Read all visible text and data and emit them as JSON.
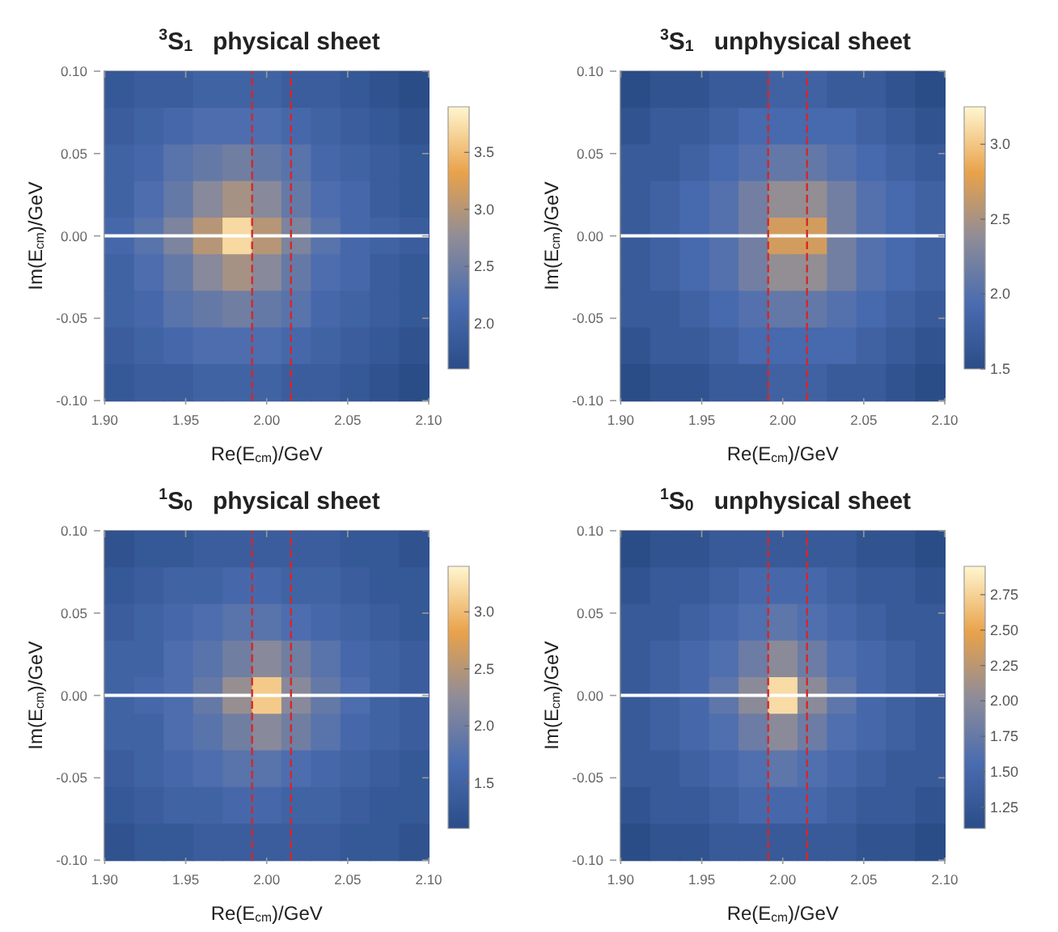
{
  "chart_data": [
    {
      "type": "heatmap",
      "title": "$^{3}$S$_{1}$   physical sheet",
      "xlabel": "Re(E$_{cm}$)/GeV",
      "ylabel": "Im(E$_{cm}$)/GeV",
      "xlim": [
        1.9,
        2.1
      ],
      "ylim": [
        -0.1,
        0.1
      ],
      "xticks": [
        {
          "value": 1.9,
          "label": "1.90"
        },
        {
          "value": 1.95,
          "label": "1.95"
        },
        {
          "value": 2.0,
          "label": "2.00"
        },
        {
          "value": 2.05,
          "label": "2.05"
        },
        {
          "value": 2.1,
          "label": "2.10"
        }
      ],
      "yticks": [
        {
          "value": -0.1,
          "label": "-0.10"
        },
        {
          "value": -0.05,
          "label": "-0.05"
        },
        {
          "value": 0,
          "label": "0.00"
        },
        {
          "value": 0.05,
          "label": "0.05"
        },
        {
          "value": 0.1,
          "label": "0.10"
        }
      ],
      "clim": [
        1.6,
        3.9
      ],
      "cticks": [
        {
          "value": 2,
          "label": "2.0"
        },
        2.5,
        {
          "value": 3,
          "label": "3.0"
        },
        3.5
      ],
      "cells": [
        [
          1.8,
          1.9,
          1.9,
          2.0,
          2.0,
          2.0,
          1.9,
          1.9,
          1.8,
          1.7,
          1.6
        ],
        [
          1.9,
          2.0,
          2.1,
          2.2,
          2.2,
          2.2,
          2.1,
          2.0,
          1.9,
          1.8,
          1.7
        ],
        [
          2.0,
          2.1,
          2.3,
          2.4,
          2.5,
          2.4,
          2.3,
          2.1,
          2.0,
          1.9,
          1.8
        ],
        [
          2.0,
          2.2,
          2.4,
          2.7,
          2.9,
          2.7,
          2.4,
          2.2,
          2.1,
          1.9,
          1.8
        ],
        [
          2.1,
          2.3,
          2.6,
          3.0,
          3.7,
          3.0,
          2.6,
          2.3,
          2.1,
          2.0,
          1.9
        ],
        [
          2.0,
          2.2,
          2.4,
          2.7,
          2.9,
          2.7,
          2.4,
          2.2,
          2.1,
          1.9,
          1.8
        ],
        [
          2.0,
          2.1,
          2.3,
          2.4,
          2.5,
          2.4,
          2.3,
          2.1,
          2.0,
          1.9,
          1.8
        ],
        [
          1.9,
          2.0,
          2.1,
          2.2,
          2.2,
          2.2,
          2.1,
          2.0,
          1.9,
          1.8,
          1.7
        ],
        [
          1.8,
          1.9,
          1.9,
          2.0,
          2.0,
          2.0,
          1.9,
          1.9,
          1.8,
          1.7,
          1.6
        ]
      ],
      "ref_lines": [
        {
          "axis": "y",
          "value": 0,
          "color": "#ffffff",
          "line_style": "solid"
        },
        {
          "axis": "x",
          "value": 1.991,
          "color": "#d62728",
          "line_style": "dashed"
        },
        {
          "axis": "x",
          "value": 2.015,
          "color": "#d62728",
          "line_style": "dashed"
        }
      ]
    },
    {
      "type": "heatmap",
      "title": "$^{3}$S$_{1}$   unphysical sheet",
      "xlabel": "Re(E$_{cm}$)/GeV",
      "ylabel": "Im(E$_{cm}$)/GeV",
      "xlim": [
        1.9,
        2.1
      ],
      "ylim": [
        -0.1,
        0.1
      ],
      "xticks": [
        {
          "value": 1.9,
          "label": "1.90"
        },
        {
          "value": 1.95,
          "label": "1.95"
        },
        {
          "value": 2.0,
          "label": "2.00"
        },
        {
          "value": 2.05,
          "label": "2.05"
        },
        {
          "value": 2.1,
          "label": "2.10"
        }
      ],
      "yticks": [
        {
          "value": -0.1,
          "label": "-0.10"
        },
        {
          "value": -0.05,
          "label": "-0.05"
        },
        {
          "value": 0,
          "label": "0.00"
        },
        {
          "value": 0.05,
          "label": "0.05"
        },
        {
          "value": 0.1,
          "label": "0.10"
        }
      ],
      "clim": [
        1.5,
        3.25
      ],
      "cticks": [
        1.5,
        {
          "value": 2,
          "label": "2.0"
        },
        2.5,
        {
          "value": 3,
          "label": "3.0"
        }
      ],
      "cells": [
        [
          1.5,
          1.6,
          1.6,
          1.7,
          1.7,
          1.8,
          1.8,
          1.7,
          1.7,
          1.6,
          1.5
        ],
        [
          1.6,
          1.7,
          1.7,
          1.8,
          1.9,
          1.9,
          1.9,
          1.9,
          1.8,
          1.7,
          1.6
        ],
        [
          1.7,
          1.7,
          1.8,
          1.9,
          2.0,
          2.1,
          2.1,
          2.0,
          1.9,
          1.8,
          1.7
        ],
        [
          1.7,
          1.8,
          1.9,
          2.0,
          2.2,
          2.4,
          2.4,
          2.2,
          2.0,
          1.9,
          1.8
        ],
        [
          1.7,
          1.8,
          1.9,
          2.0,
          2.2,
          2.7,
          2.7,
          2.2,
          2.0,
          1.9,
          1.8
        ],
        [
          1.7,
          1.8,
          1.9,
          2.0,
          2.2,
          2.4,
          2.4,
          2.2,
          2.0,
          1.9,
          1.8
        ],
        [
          1.7,
          1.7,
          1.8,
          1.9,
          2.0,
          2.1,
          2.1,
          2.0,
          1.9,
          1.8,
          1.7
        ],
        [
          1.6,
          1.7,
          1.7,
          1.8,
          1.9,
          1.9,
          1.9,
          1.9,
          1.8,
          1.7,
          1.6
        ],
        [
          1.5,
          1.6,
          1.6,
          1.7,
          1.7,
          1.8,
          1.8,
          1.7,
          1.7,
          1.6,
          1.5
        ]
      ],
      "ref_lines": [
        {
          "axis": "y",
          "value": 0,
          "color": "#ffffff",
          "line_style": "solid"
        },
        {
          "axis": "x",
          "value": 1.991,
          "color": "#d62728",
          "line_style": "dashed"
        },
        {
          "axis": "x",
          "value": 2.015,
          "color": "#d62728",
          "line_style": "dashed"
        }
      ]
    },
    {
      "type": "heatmap",
      "title": "$^{1}$S$_{0}$   physical sheet",
      "xlabel": "Re(E$_{cm}$)/GeV",
      "ylabel": "Im(E$_{cm}$)/GeV",
      "xlim": [
        1.9,
        2.1
      ],
      "ylim": [
        -0.1,
        0.1
      ],
      "xticks": [
        {
          "value": 1.9,
          "label": "1.90"
        },
        {
          "value": 1.95,
          "label": "1.95"
        },
        {
          "value": 2.0,
          "label": "2.00"
        },
        {
          "value": 2.05,
          "label": "2.05"
        },
        {
          "value": 2.1,
          "label": "2.10"
        }
      ],
      "yticks": [
        {
          "value": -0.1,
          "label": "-0.10"
        },
        {
          "value": -0.05,
          "label": "-0.05"
        },
        {
          "value": 0,
          "label": "0.00"
        },
        {
          "value": 0.05,
          "label": "0.05"
        },
        {
          "value": 0.1,
          "label": "0.10"
        }
      ],
      "clim": [
        1.1,
        3.4
      ],
      "cticks": [
        1.5,
        {
          "value": 2,
          "label": "2.0"
        },
        2.5,
        {
          "value": 3,
          "label": "3.0"
        }
      ],
      "cells": [
        [
          1.2,
          1.3,
          1.3,
          1.4,
          1.4,
          1.4,
          1.4,
          1.4,
          1.3,
          1.3,
          1.2
        ],
        [
          1.3,
          1.4,
          1.5,
          1.5,
          1.6,
          1.6,
          1.5,
          1.5,
          1.4,
          1.3,
          1.3
        ],
        [
          1.4,
          1.5,
          1.6,
          1.7,
          1.8,
          1.8,
          1.7,
          1.6,
          1.5,
          1.4,
          1.3
        ],
        [
          1.5,
          1.5,
          1.7,
          1.8,
          2.0,
          2.2,
          2.0,
          1.8,
          1.6,
          1.5,
          1.4
        ],
        [
          1.5,
          1.6,
          1.7,
          1.9,
          2.3,
          3.1,
          2.2,
          1.9,
          1.7,
          1.5,
          1.4
        ],
        [
          1.5,
          1.5,
          1.7,
          1.8,
          2.0,
          2.2,
          2.0,
          1.8,
          1.6,
          1.5,
          1.4
        ],
        [
          1.4,
          1.5,
          1.6,
          1.7,
          1.8,
          1.8,
          1.7,
          1.6,
          1.5,
          1.4,
          1.3
        ],
        [
          1.3,
          1.4,
          1.5,
          1.5,
          1.6,
          1.6,
          1.5,
          1.5,
          1.4,
          1.3,
          1.3
        ],
        [
          1.2,
          1.3,
          1.3,
          1.4,
          1.4,
          1.4,
          1.4,
          1.4,
          1.3,
          1.3,
          1.2
        ]
      ],
      "ref_lines": [
        {
          "axis": "y",
          "value": 0,
          "color": "#ffffff",
          "line_style": "solid"
        },
        {
          "axis": "x",
          "value": 1.991,
          "color": "#d62728",
          "line_style": "dashed"
        },
        {
          "axis": "x",
          "value": 2.015,
          "color": "#d62728",
          "line_style": "dashed"
        }
      ]
    },
    {
      "type": "heatmap",
      "title": "$^{1}$S$_{0}$   unphysical sheet",
      "xlabel": "Re(E$_{cm}$)/GeV",
      "ylabel": "Im(E$_{cm}$)/GeV",
      "xlim": [
        1.9,
        2.1
      ],
      "ylim": [
        -0.1,
        0.1
      ],
      "xticks": [
        {
          "value": 1.9,
          "label": "1.90"
        },
        {
          "value": 1.95,
          "label": "1.95"
        },
        {
          "value": 2.0,
          "label": "2.00"
        },
        {
          "value": 2.05,
          "label": "2.05"
        },
        {
          "value": 2.1,
          "label": "2.10"
        }
      ],
      "yticks": [
        {
          "value": -0.1,
          "label": "-0.10"
        },
        {
          "value": -0.05,
          "label": "-0.05"
        },
        {
          "value": 0,
          "label": "0.00"
        },
        {
          "value": 0.05,
          "label": "0.05"
        },
        {
          "value": 0.1,
          "label": "0.10"
        }
      ],
      "clim": [
        1.1,
        2.95
      ],
      "cticks": [
        1.25,
        {
          "value": 1.5,
          "label": "1.50"
        },
        1.75,
        {
          "value": 2,
          "label": "2.00"
        },
        2.25,
        {
          "value": 2.5,
          "label": "2.50"
        },
        2.75
      ],
      "cells": [
        [
          1.1,
          1.2,
          1.2,
          1.3,
          1.3,
          1.3,
          1.3,
          1.3,
          1.2,
          1.2,
          1.1
        ],
        [
          1.2,
          1.3,
          1.3,
          1.4,
          1.5,
          1.5,
          1.5,
          1.4,
          1.3,
          1.3,
          1.2
        ],
        [
          1.3,
          1.3,
          1.4,
          1.5,
          1.6,
          1.7,
          1.6,
          1.5,
          1.4,
          1.3,
          1.3
        ],
        [
          1.3,
          1.4,
          1.5,
          1.6,
          1.8,
          2.0,
          1.8,
          1.6,
          1.5,
          1.4,
          1.3
        ],
        [
          1.3,
          1.4,
          1.5,
          1.7,
          2.0,
          2.8,
          2.0,
          1.7,
          1.5,
          1.4,
          1.3
        ],
        [
          1.3,
          1.4,
          1.5,
          1.6,
          1.8,
          2.0,
          1.8,
          1.6,
          1.5,
          1.4,
          1.3
        ],
        [
          1.3,
          1.3,
          1.4,
          1.5,
          1.6,
          1.7,
          1.6,
          1.5,
          1.4,
          1.3,
          1.3
        ],
        [
          1.2,
          1.3,
          1.3,
          1.4,
          1.5,
          1.5,
          1.5,
          1.4,
          1.3,
          1.3,
          1.2
        ],
        [
          1.1,
          1.2,
          1.2,
          1.3,
          1.3,
          1.3,
          1.3,
          1.3,
          1.2,
          1.2,
          1.1
        ]
      ],
      "ref_lines": [
        {
          "axis": "y",
          "value": 0,
          "color": "#ffffff",
          "line_style": "solid"
        },
        {
          "axis": "x",
          "value": 1.991,
          "color": "#d62728",
          "line_style": "dashed"
        },
        {
          "axis": "x",
          "value": 2.015,
          "color": "#d62728",
          "line_style": "dashed"
        }
      ]
    }
  ]
}
